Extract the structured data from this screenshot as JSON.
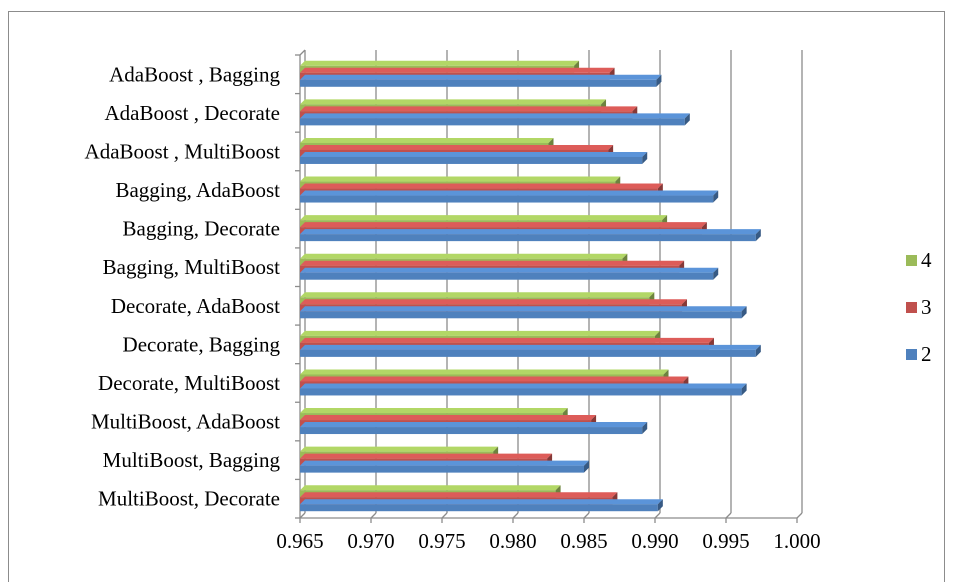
{
  "chart_data": {
    "type": "bar",
    "orientation": "horizontal",
    "style": "3d-clustered",
    "categories": [
      "AdaBoost , Bagging",
      "AdaBoost , Decorate",
      "AdaBoost , MultiBoost",
      "Bagging, AdaBoost",
      "Bagging, Decorate",
      "Bagging, MultiBoost",
      "Decorate, AdaBoost",
      "Decorate, Bagging",
      "Decorate, MultiBoost",
      "MultiBoost, AdaBoost",
      "MultiBoost, Bagging",
      "MultiBoost, Decorate"
    ],
    "series": [
      {
        "name": "4",
        "color": "#9bbb59",
        "values": [
          0.9843,
          0.9862,
          0.9825,
          0.9872,
          0.9905,
          0.9877,
          0.9896,
          0.99,
          0.9906,
          0.9835,
          0.9786,
          0.983
        ]
      },
      {
        "name": "3",
        "color": "#c0504d",
        "values": [
          0.9868,
          0.9884,
          0.9867,
          0.9902,
          0.9933,
          0.9917,
          0.9919,
          0.9938,
          0.992,
          0.9855,
          0.9824,
          0.987
        ]
      },
      {
        "name": "2",
        "color": "#4f81bd",
        "values": [
          0.9901,
          0.9921,
          0.9891,
          0.9941,
          0.9971,
          0.9941,
          0.9961,
          0.9971,
          0.9961,
          0.9891,
          0.985,
          0.9902
        ]
      }
    ],
    "xlim": [
      0.965,
      1.0
    ],
    "xticks": [
      "0.965",
      "0.970",
      "0.975",
      "0.980",
      "0.985",
      "0.990",
      "0.995",
      "1.000"
    ],
    "grid": "vertical",
    "legend_position": "right",
    "legend_order": [
      "4",
      "3",
      "2"
    ]
  }
}
